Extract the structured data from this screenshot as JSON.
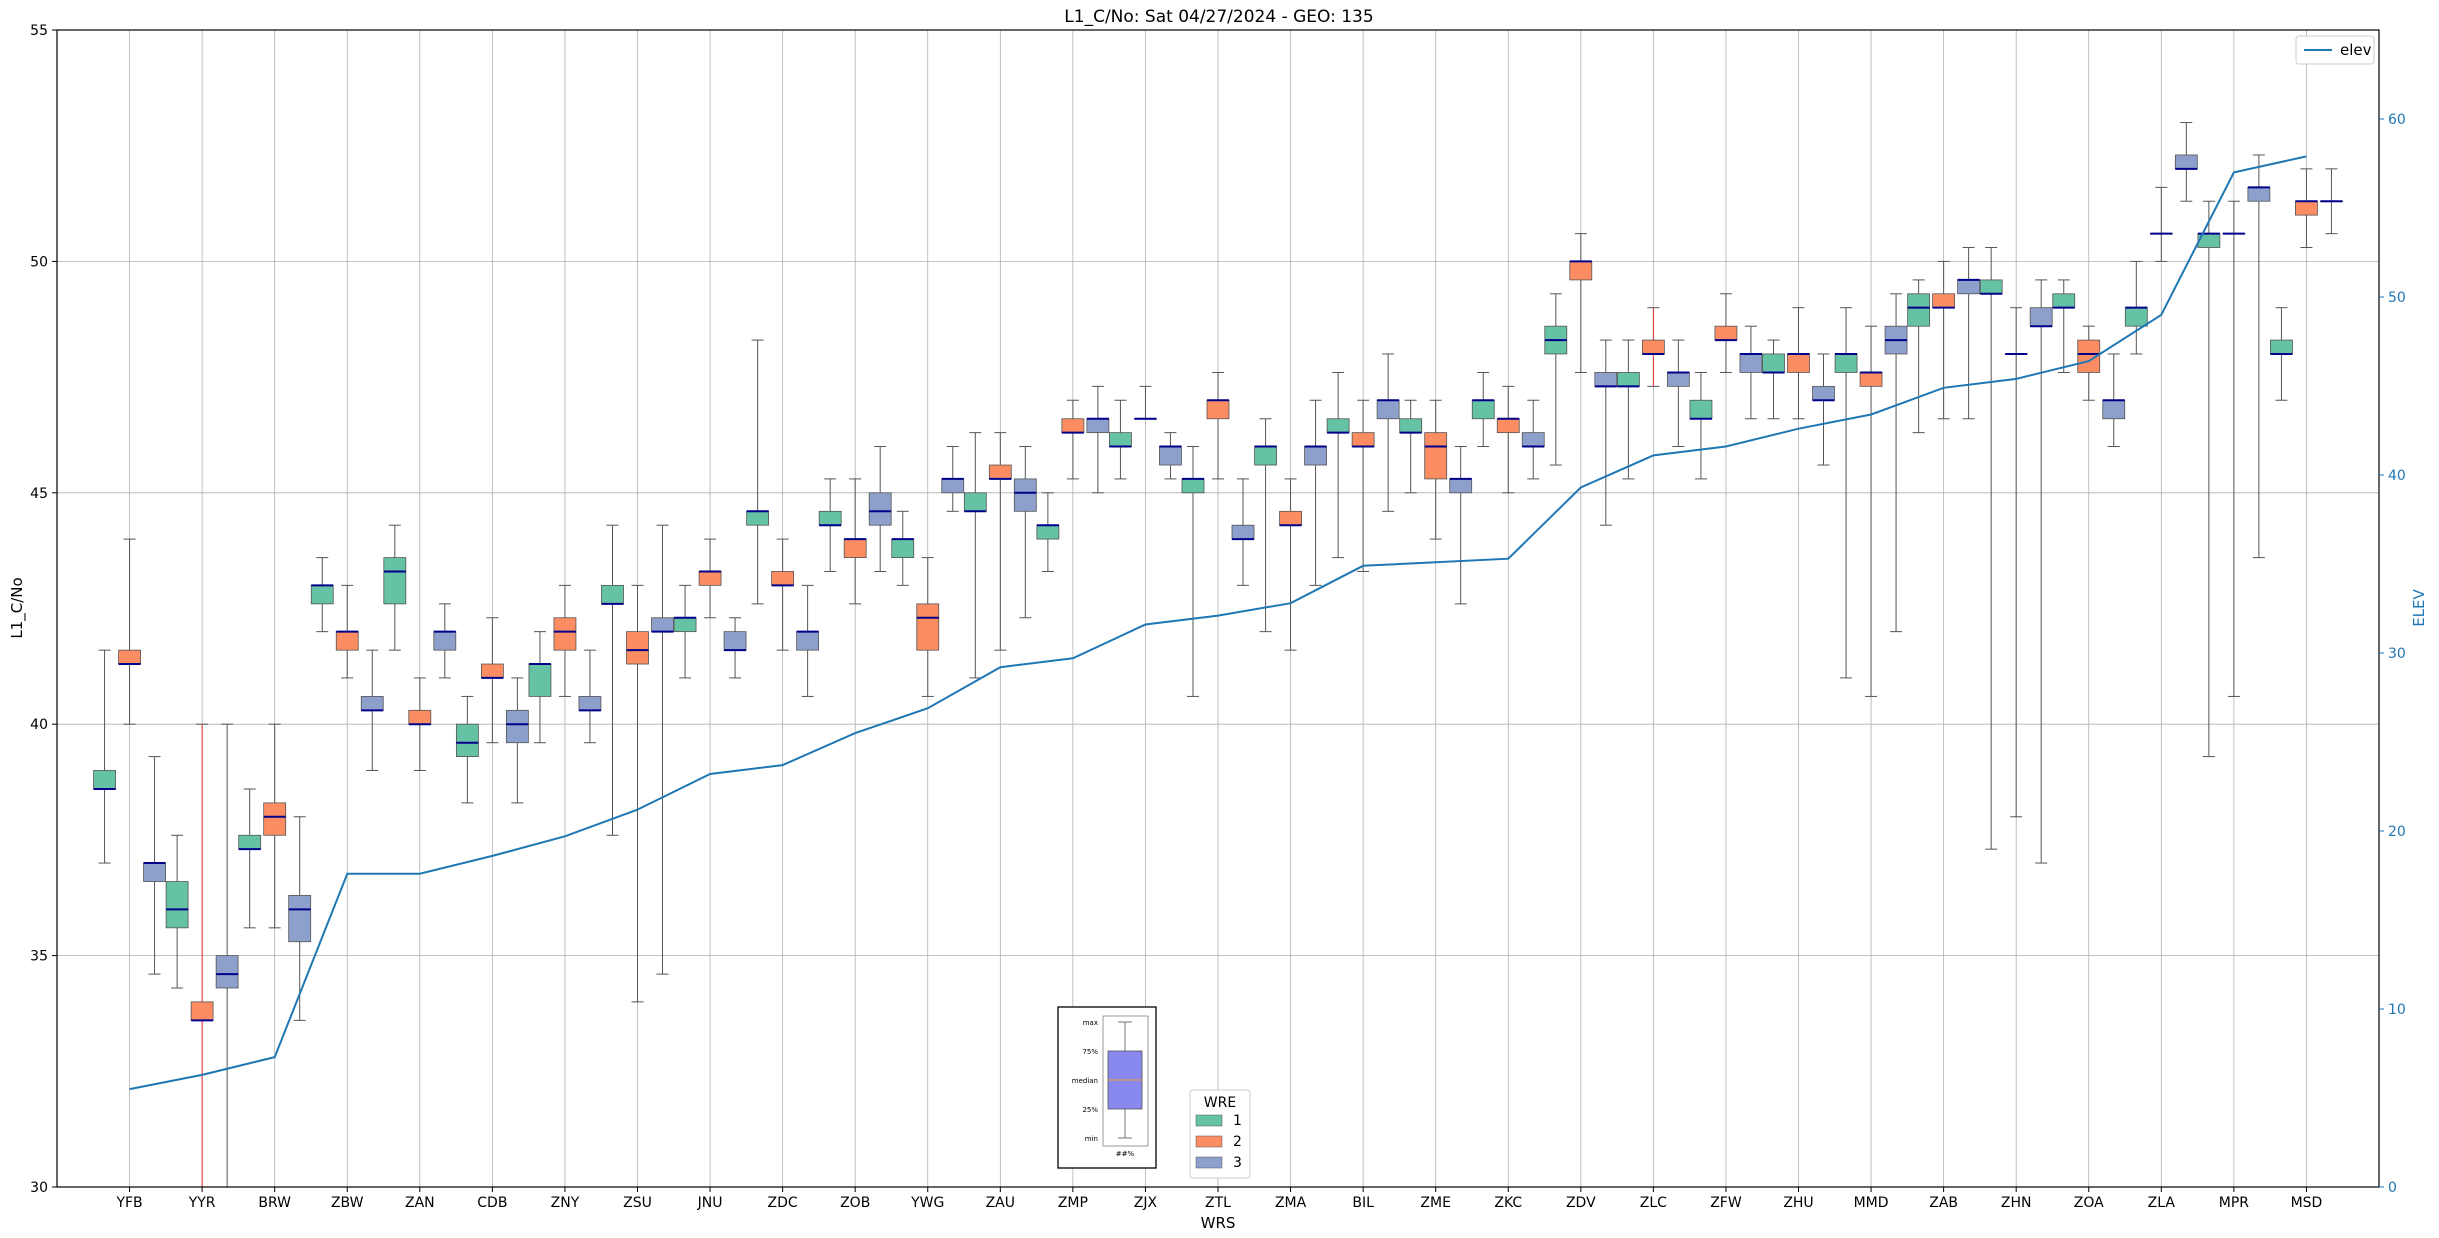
{
  "chart_data": {
    "type": "box",
    "title": "L1_C/No: Sat 04/27/2024 - GEO: 135",
    "xlabel": "WRS",
    "ylabel": "L1_C/No",
    "y2label": "ELEV",
    "ylim": [
      30,
      55
    ],
    "y2lim": [
      0,
      65
    ],
    "yticks": [
      "30",
      "35",
      "40",
      "45",
      "50",
      "55"
    ],
    "y2ticks": [
      "0",
      "10",
      "20",
      "30",
      "40",
      "50",
      "60"
    ],
    "grid": true,
    "colors": {
      "1": "#66c2a5",
      "2": "#fc8d62",
      "3": "#8da0cb",
      "elev": "#1f77b4",
      "median": "#00008b",
      "whisker": "#555555"
    },
    "categories": [
      "YFB",
      "YYR",
      "BRW",
      "ZBW",
      "ZAN",
      "CDB",
      "ZNY",
      "ZSU",
      "JNU",
      "ZDC",
      "ZOB",
      "YWG",
      "ZAU",
      "ZMP",
      "ZJX",
      "ZTL",
      "ZMA",
      "BIL",
      "ZME",
      "ZKC",
      "ZDV",
      "ZLC",
      "ZFW",
      "ZHU",
      "MMD",
      "ZAB",
      "ZHN",
      "ZOA",
      "ZLA",
      "MPR",
      "MSD"
    ],
    "elev_legend": "elev",
    "elev": [
      5.5,
      6.3,
      7.3,
      17.6,
      17.6,
      18.6,
      19.7,
      21.2,
      23.2,
      23.7,
      25.5,
      26.9,
      29.2,
      29.7,
      31.6,
      32.1,
      32.8,
      34.9,
      35.1,
      35.3,
      39.3,
      41.1,
      41.6,
      42.6,
      43.4,
      44.9,
      45.4,
      46.4,
      49.0,
      57.0,
      57.9
    ],
    "legend_title": "WRE",
    "legend_labels": [
      "1",
      "2",
      "3"
    ],
    "key_labels": [
      "max",
      "75%",
      "median",
      "25%",
      "min",
      "##%"
    ],
    "boxes": [
      {
        "wrs": "YFB",
        "wre": 1,
        "min": 37.0,
        "q1": 38.6,
        "median": 38.6,
        "q3": 39.0,
        "max": 41.6
      },
      {
        "wrs": "YFB",
        "wre": 2,
        "min": 40.0,
        "q1": 41.3,
        "median": 41.3,
        "q3": 41.6,
        "max": 44.0
      },
      {
        "wrs": "YFB",
        "wre": 3,
        "min": 34.6,
        "q1": 36.6,
        "median": 37.0,
        "q3": 37.0,
        "max": 39.3
      },
      {
        "wrs": "YYR",
        "wre": 1,
        "min": 34.3,
        "q1": 35.6,
        "median": 36.0,
        "q3": 36.6,
        "max": 37.6
      },
      {
        "wrs": "YYR",
        "wre": 2,
        "min": 30.0,
        "q1": 33.6,
        "median": 33.6,
        "q3": 34.0,
        "max": 40.0,
        "red": true
      },
      {
        "wrs": "YYR",
        "wre": 3,
        "min": 30.0,
        "q1": 34.3,
        "median": 34.6,
        "q3": 35.0,
        "max": 40.0
      },
      {
        "wrs": "BRW",
        "wre": 1,
        "min": 35.6,
        "q1": 37.3,
        "median": 37.3,
        "q3": 37.6,
        "max": 38.6
      },
      {
        "wrs": "BRW",
        "wre": 2,
        "min": 35.6,
        "q1": 37.6,
        "median": 38.0,
        "q3": 38.3,
        "max": 40.0
      },
      {
        "wrs": "BRW",
        "wre": 3,
        "min": 33.6,
        "q1": 35.3,
        "median": 36.0,
        "q3": 36.3,
        "max": 38.0
      },
      {
        "wrs": "ZBW",
        "wre": 1,
        "min": 42.0,
        "q1": 42.6,
        "median": 43.0,
        "q3": 43.0,
        "max": 43.6
      },
      {
        "wrs": "ZBW",
        "wre": 2,
        "min": 41.0,
        "q1": 41.6,
        "median": 42.0,
        "q3": 42.0,
        "max": 43.0
      },
      {
        "wrs": "ZBW",
        "wre": 3,
        "min": 39.0,
        "q1": 40.3,
        "median": 40.3,
        "q3": 40.6,
        "max": 41.6
      },
      {
        "wrs": "ZAN",
        "wre": 1,
        "min": 41.6,
        "q1": 42.6,
        "median": 43.3,
        "q3": 43.6,
        "max": 44.3
      },
      {
        "wrs": "ZAN",
        "wre": 2,
        "min": 39.0,
        "q1": 40.0,
        "median": 40.0,
        "q3": 40.3,
        "max": 41.0
      },
      {
        "wrs": "ZAN",
        "wre": 3,
        "min": 41.0,
        "q1": 41.6,
        "median": 42.0,
        "q3": 42.0,
        "max": 42.6
      },
      {
        "wrs": "CDB",
        "wre": 1,
        "min": 38.3,
        "q1": 39.3,
        "median": 39.6,
        "q3": 40.0,
        "max": 40.6
      },
      {
        "wrs": "CDB",
        "wre": 2,
        "min": 39.6,
        "q1": 41.0,
        "median": 41.0,
        "q3": 41.3,
        "max": 42.3
      },
      {
        "wrs": "CDB",
        "wre": 3,
        "min": 38.3,
        "q1": 39.6,
        "median": 40.0,
        "q3": 40.3,
        "max": 41.0
      },
      {
        "wrs": "ZNY",
        "wre": 1,
        "min": 39.6,
        "q1": 40.6,
        "median": 41.3,
        "q3": 41.3,
        "max": 42.0
      },
      {
        "wrs": "ZNY",
        "wre": 2,
        "min": 40.6,
        "q1": 41.6,
        "median": 42.0,
        "q3": 42.3,
        "max": 43.0
      },
      {
        "wrs": "ZNY",
        "wre": 3,
        "min": 39.6,
        "q1": 40.3,
        "median": 40.3,
        "q3": 40.6,
        "max": 41.6
      },
      {
        "wrs": "ZSU",
        "wre": 1,
        "min": 37.6,
        "q1": 42.6,
        "median": 42.6,
        "q3": 43.0,
        "max": 44.3
      },
      {
        "wrs": "ZSU",
        "wre": 2,
        "min": 34.0,
        "q1": 41.3,
        "median": 41.6,
        "q3": 42.0,
        "max": 43.0
      },
      {
        "wrs": "ZSU",
        "wre": 3,
        "min": 34.6,
        "q1": 42.0,
        "median": 42.0,
        "q3": 42.3,
        "max": 44.3
      },
      {
        "wrs": "JNU",
        "wre": 1,
        "min": 41.0,
        "q1": 42.0,
        "median": 42.3,
        "q3": 42.3,
        "max": 43.0
      },
      {
        "wrs": "JNU",
        "wre": 2,
        "min": 42.3,
        "q1": 43.0,
        "median": 43.3,
        "q3": 43.3,
        "max": 44.0
      },
      {
        "wrs": "JNU",
        "wre": 3,
        "min": 41.0,
        "q1": 41.6,
        "median": 41.6,
        "q3": 42.0,
        "max": 42.3
      },
      {
        "wrs": "ZDC",
        "wre": 1,
        "min": 42.6,
        "q1": 44.3,
        "median": 44.6,
        "q3": 44.6,
        "max": 48.3
      },
      {
        "wrs": "ZDC",
        "wre": 2,
        "min": 41.6,
        "q1": 43.0,
        "median": 43.0,
        "q3": 43.3,
        "max": 44.0
      },
      {
        "wrs": "ZDC",
        "wre": 3,
        "min": 40.6,
        "q1": 41.6,
        "median": 42.0,
        "q3": 42.0,
        "max": 43.0
      },
      {
        "wrs": "ZOB",
        "wre": 1,
        "min": 43.3,
        "q1": 44.3,
        "median": 44.3,
        "q3": 44.6,
        "max": 45.3
      },
      {
        "wrs": "ZOB",
        "wre": 2,
        "min": 42.6,
        "q1": 43.6,
        "median": 44.0,
        "q3": 44.0,
        "max": 45.3
      },
      {
        "wrs": "ZOB",
        "wre": 3,
        "min": 43.3,
        "q1": 44.3,
        "median": 44.6,
        "q3": 45.0,
        "max": 46.0
      },
      {
        "wrs": "YWG",
        "wre": 1,
        "min": 43.0,
        "q1": 43.6,
        "median": 44.0,
        "q3": 44.0,
        "max": 44.6
      },
      {
        "wrs": "YWG",
        "wre": 2,
        "min": 40.6,
        "q1": 41.6,
        "median": 42.3,
        "q3": 42.6,
        "max": 43.6
      },
      {
        "wrs": "YWG",
        "wre": 3,
        "min": 44.6,
        "q1": 45.0,
        "median": 45.3,
        "q3": 45.3,
        "max": 46.0
      },
      {
        "wrs": "ZAU",
        "wre": 1,
        "min": 41.0,
        "q1": 44.6,
        "median": 44.6,
        "q3": 45.0,
        "max": 46.3
      },
      {
        "wrs": "ZAU",
        "wre": 2,
        "min": 41.6,
        "q1": 45.3,
        "median": 45.3,
        "q3": 45.6,
        "max": 46.3
      },
      {
        "wrs": "ZAU",
        "wre": 3,
        "min": 42.3,
        "q1": 44.6,
        "median": 45.0,
        "q3": 45.3,
        "max": 46.0
      },
      {
        "wrs": "ZMP",
        "wre": 1,
        "min": 43.3,
        "q1": 44.0,
        "median": 44.3,
        "q3": 44.3,
        "max": 45.0
      },
      {
        "wrs": "ZMP",
        "wre": 2,
        "min": 45.3,
        "q1": 46.3,
        "median": 46.3,
        "q3": 46.6,
        "max": 47.0
      },
      {
        "wrs": "ZMP",
        "wre": 3,
        "min": 45.0,
        "q1": 46.3,
        "median": 46.6,
        "q3": 46.6,
        "max": 47.3
      },
      {
        "wrs": "ZJX",
        "wre": 1,
        "min": 45.3,
        "q1": 46.0,
        "median": 46.0,
        "q3": 46.3,
        "max": 47.0
      },
      {
        "wrs": "ZJX",
        "wre": 2,
        "min": 46.6,
        "q1": 46.6,
        "median": 46.6,
        "q3": 46.6,
        "max": 47.3
      },
      {
        "wrs": "ZJX",
        "wre": 3,
        "min": 45.3,
        "q1": 45.6,
        "median": 46.0,
        "q3": 46.0,
        "max": 46.3
      },
      {
        "wrs": "ZTL",
        "wre": 1,
        "min": 40.6,
        "q1": 45.0,
        "median": 45.3,
        "q3": 45.3,
        "max": 46.0
      },
      {
        "wrs": "ZTL",
        "wre": 2,
        "min": 45.3,
        "q1": 46.6,
        "median": 47.0,
        "q3": 47.0,
        "max": 47.6
      },
      {
        "wrs": "ZTL",
        "wre": 3,
        "min": 43.0,
        "q1": 44.0,
        "median": 44.0,
        "q3": 44.3,
        "max": 45.3
      },
      {
        "wrs": "ZMA",
        "wre": 1,
        "min": 42.0,
        "q1": 45.6,
        "median": 46.0,
        "q3": 46.0,
        "max": 46.6
      },
      {
        "wrs": "ZMA",
        "wre": 2,
        "min": 41.6,
        "q1": 44.3,
        "median": 44.3,
        "q3": 44.6,
        "max": 45.3
      },
      {
        "wrs": "ZMA",
        "wre": 3,
        "min": 43.0,
        "q1": 45.6,
        "median": 46.0,
        "q3": 46.0,
        "max": 47.0
      },
      {
        "wrs": "BIL",
        "wre": 1,
        "min": 43.6,
        "q1": 46.3,
        "median": 46.3,
        "q3": 46.6,
        "max": 47.6
      },
      {
        "wrs": "BIL",
        "wre": 2,
        "min": 43.3,
        "q1": 46.0,
        "median": 46.0,
        "q3": 46.3,
        "max": 47.0
      },
      {
        "wrs": "BIL",
        "wre": 3,
        "min": 44.6,
        "q1": 46.6,
        "median": 47.0,
        "q3": 47.0,
        "max": 48.0
      },
      {
        "wrs": "ZME",
        "wre": 1,
        "min": 45.0,
        "q1": 46.3,
        "median": 46.3,
        "q3": 46.6,
        "max": 47.0
      },
      {
        "wrs": "ZME",
        "wre": 2,
        "min": 44.0,
        "q1": 45.3,
        "median": 46.0,
        "q3": 46.3,
        "max": 47.0
      },
      {
        "wrs": "ZME",
        "wre": 3,
        "min": 42.6,
        "q1": 45.0,
        "median": 45.3,
        "q3": 45.3,
        "max": 46.0
      },
      {
        "wrs": "ZKC",
        "wre": 1,
        "min": 46.0,
        "q1": 46.6,
        "median": 47.0,
        "q3": 47.0,
        "max": 47.6
      },
      {
        "wrs": "ZKC",
        "wre": 2,
        "min": 45.0,
        "q1": 46.3,
        "median": 46.6,
        "q3": 46.6,
        "max": 47.3
      },
      {
        "wrs": "ZKC",
        "wre": 3,
        "min": 45.3,
        "q1": 46.0,
        "median": 46.0,
        "q3": 46.3,
        "max": 47.0
      },
      {
        "wrs": "ZDV",
        "wre": 1,
        "min": 45.6,
        "q1": 48.0,
        "median": 48.3,
        "q3": 48.6,
        "max": 49.3
      },
      {
        "wrs": "ZDV",
        "wre": 2,
        "min": 47.6,
        "q1": 49.6,
        "median": 50.0,
        "q3": 50.0,
        "max": 50.6
      },
      {
        "wrs": "ZDV",
        "wre": 3,
        "min": 44.3,
        "q1": 47.3,
        "median": 47.3,
        "q3": 47.6,
        "max": 48.3
      },
      {
        "wrs": "ZLC",
        "wre": 1,
        "min": 45.3,
        "q1": 47.3,
        "median": 47.3,
        "q3": 47.6,
        "max": 48.3
      },
      {
        "wrs": "ZLC",
        "wre": 2,
        "min": 47.3,
        "q1": 48.0,
        "median": 48.0,
        "q3": 48.3,
        "max": 49.0,
        "red": true
      },
      {
        "wrs": "ZLC",
        "wre": 3,
        "min": 46.0,
        "q1": 47.3,
        "median": 47.6,
        "q3": 47.6,
        "max": 48.3
      },
      {
        "wrs": "ZFW",
        "wre": 1,
        "min": 45.3,
        "q1": 46.6,
        "median": 46.6,
        "q3": 47.0,
        "max": 47.6
      },
      {
        "wrs": "ZFW",
        "wre": 2,
        "min": 47.6,
        "q1": 48.3,
        "median": 48.3,
        "q3": 48.6,
        "max": 49.3
      },
      {
        "wrs": "ZFW",
        "wre": 3,
        "min": 46.6,
        "q1": 47.6,
        "median": 48.0,
        "q3": 48.0,
        "max": 48.6
      },
      {
        "wrs": "ZHU",
        "wre": 1,
        "min": 46.6,
        "q1": 47.6,
        "median": 47.6,
        "q3": 48.0,
        "max": 48.3
      },
      {
        "wrs": "ZHU",
        "wre": 2,
        "min": 46.6,
        "q1": 47.6,
        "median": 48.0,
        "q3": 48.0,
        "max": 49.0
      },
      {
        "wrs": "ZHU",
        "wre": 3,
        "min": 45.6,
        "q1": 47.0,
        "median": 47.0,
        "q3": 47.3,
        "max": 48.0
      },
      {
        "wrs": "MMD",
        "wre": 1,
        "min": 41.0,
        "q1": 47.6,
        "median": 48.0,
        "q3": 48.0,
        "max": 49.0
      },
      {
        "wrs": "MMD",
        "wre": 2,
        "min": 40.6,
        "q1": 47.3,
        "median": 47.6,
        "q3": 47.6,
        "max": 48.6
      },
      {
        "wrs": "MMD",
        "wre": 3,
        "min": 42.0,
        "q1": 48.0,
        "median": 48.3,
        "q3": 48.6,
        "max": 49.3
      },
      {
        "wrs": "ZAB",
        "wre": 1,
        "min": 46.3,
        "q1": 48.6,
        "median": 49.0,
        "q3": 49.3,
        "max": 49.6
      },
      {
        "wrs": "ZAB",
        "wre": 2,
        "min": 46.6,
        "q1": 49.0,
        "median": 49.0,
        "q3": 49.3,
        "max": 50.0
      },
      {
        "wrs": "ZAB",
        "wre": 3,
        "min": 46.6,
        "q1": 49.3,
        "median": 49.6,
        "q3": 49.6,
        "max": 50.3
      },
      {
        "wrs": "ZHN",
        "wre": 1,
        "min": 37.3,
        "q1": 49.3,
        "median": 49.3,
        "q3": 49.6,
        "max": 50.3
      },
      {
        "wrs": "ZHN",
        "wre": 2,
        "min": 38.0,
        "q1": 48.0,
        "median": 48.0,
        "q3": 48.0,
        "max": 49.0
      },
      {
        "wrs": "ZHN",
        "wre": 3,
        "min": 37.0,
        "q1": 48.6,
        "median": 48.6,
        "q3": 49.0,
        "max": 49.6
      },
      {
        "wrs": "ZOA",
        "wre": 1,
        "min": 47.6,
        "q1": 49.0,
        "median": 49.0,
        "q3": 49.3,
        "max": 49.6
      },
      {
        "wrs": "ZOA",
        "wre": 2,
        "min": 47.0,
        "q1": 47.6,
        "median": 48.0,
        "q3": 48.3,
        "max": 48.6
      },
      {
        "wrs": "ZOA",
        "wre": 3,
        "min": 46.0,
        "q1": 46.6,
        "median": 47.0,
        "q3": 47.0,
        "max": 48.0
      },
      {
        "wrs": "ZLA",
        "wre": 1,
        "min": 48.0,
        "q1": 48.6,
        "median": 49.0,
        "q3": 49.0,
        "max": 50.0
      },
      {
        "wrs": "ZLA",
        "wre": 2,
        "min": 50.0,
        "q1": 50.6,
        "median": 50.6,
        "q3": 50.6,
        "max": 51.6
      },
      {
        "wrs": "ZLA",
        "wre": 3,
        "min": 51.3,
        "q1": 52.0,
        "median": 52.0,
        "q3": 52.3,
        "max": 53.0
      },
      {
        "wrs": "MPR",
        "wre": 1,
        "min": 39.3,
        "q1": 50.3,
        "median": 50.6,
        "q3": 50.6,
        "max": 51.3
      },
      {
        "wrs": "MPR",
        "wre": 2,
        "min": 40.6,
        "q1": 50.6,
        "median": 50.6,
        "q3": 50.6,
        "max": 51.3
      },
      {
        "wrs": "MPR",
        "wre": 3,
        "min": 43.6,
        "q1": 51.3,
        "median": 51.6,
        "q3": 51.6,
        "max": 52.3
      },
      {
        "wrs": "MSD",
        "wre": 1,
        "min": 47.0,
        "q1": 48.0,
        "median": 48.0,
        "q3": 48.3,
        "max": 49.0
      },
      {
        "wrs": "MSD",
        "wre": 2,
        "min": 50.3,
        "q1": 51.0,
        "median": 51.3,
        "q3": 51.3,
        "max": 52.0
      },
      {
        "wrs": "MSD",
        "wre": 3,
        "min": 50.6,
        "q1": 51.3,
        "median": 51.3,
        "q3": 51.3,
        "max": 52.0
      }
    ]
  }
}
